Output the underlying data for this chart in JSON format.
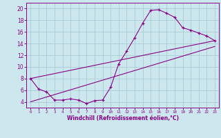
{
  "xlabel": "Windchill (Refroidissement éolien,°C)",
  "bg_color": "#cce8ee",
  "line_color": "#880088",
  "grid_color": "#aaccd4",
  "xlim": [
    -0.5,
    23.5
  ],
  "ylim": [
    3,
    21
  ],
  "yticks": [
    4,
    6,
    8,
    10,
    12,
    14,
    16,
    18,
    20
  ],
  "xticks": [
    0,
    1,
    2,
    3,
    4,
    5,
    6,
    7,
    8,
    9,
    10,
    11,
    12,
    13,
    14,
    15,
    16,
    17,
    18,
    19,
    20,
    21,
    22,
    23
  ],
  "curve_x": [
    0,
    1,
    2,
    3,
    4,
    5,
    6,
    7,
    8,
    9,
    10,
    11,
    12,
    13,
    14,
    15,
    16,
    17,
    18,
    19,
    20,
    21,
    22,
    23
  ],
  "curve_y": [
    8.0,
    6.2,
    5.7,
    4.3,
    4.3,
    4.5,
    4.3,
    3.7,
    4.2,
    4.3,
    6.5,
    10.5,
    12.7,
    15.0,
    17.5,
    19.7,
    19.8,
    19.2,
    18.5,
    16.7,
    16.3,
    15.8,
    15.3,
    14.5
  ],
  "line1_x": [
    0,
    23
  ],
  "line1_y": [
    8.0,
    14.5
  ],
  "line2_x": [
    0,
    23
  ],
  "line2_y": [
    4.0,
    13.5
  ]
}
